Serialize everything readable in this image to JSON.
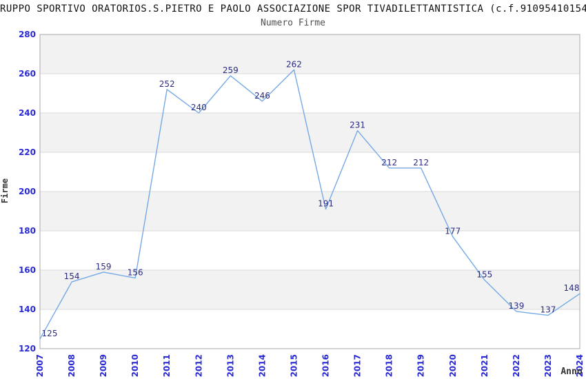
{
  "header": {
    "title": "RUPPO SPORTIVO ORATORIOS.S.PIETRO E PAOLO ASSOCIAZIONE SPOR TIVADILETTANTISTICA (c.f.91095410154",
    "subtitle": "Numero Firme"
  },
  "chart_data": {
    "type": "line",
    "title": "Numero Firme",
    "xlabel": "Anno",
    "ylabel": "Firme",
    "categories": [
      "2007",
      "2008",
      "2009",
      "2010",
      "2011",
      "2012",
      "2013",
      "2014",
      "2015",
      "2016",
      "2017",
      "2018",
      "2019",
      "2020",
      "2021",
      "2022",
      "2023",
      "2024"
    ],
    "values": [
      125,
      154,
      159,
      156,
      252,
      240,
      259,
      246,
      262,
      191,
      231,
      212,
      212,
      177,
      155,
      139,
      137,
      148
    ],
    "ylim": [
      120,
      280
    ],
    "ytick_step": 20,
    "yticks": [
      120,
      140,
      160,
      180,
      200,
      220,
      240,
      260,
      280
    ],
    "grid": "horizontal-bands-alternating",
    "legend": "none",
    "x_labels_rotation": -90,
    "point_labels_visible": true,
    "colors": {
      "line": "#74a9e6",
      "axis_tick_labels": "#2929d4",
      "value_labels": "#2b2b80",
      "band_fill": "#f2f2f2",
      "gridline": "#d9d9d9",
      "plot_border": "#a9a9a9",
      "title": "#111111",
      "subtitle": "#4f4f4f",
      "axis_title": "#333333",
      "background": "#ffffff"
    }
  }
}
